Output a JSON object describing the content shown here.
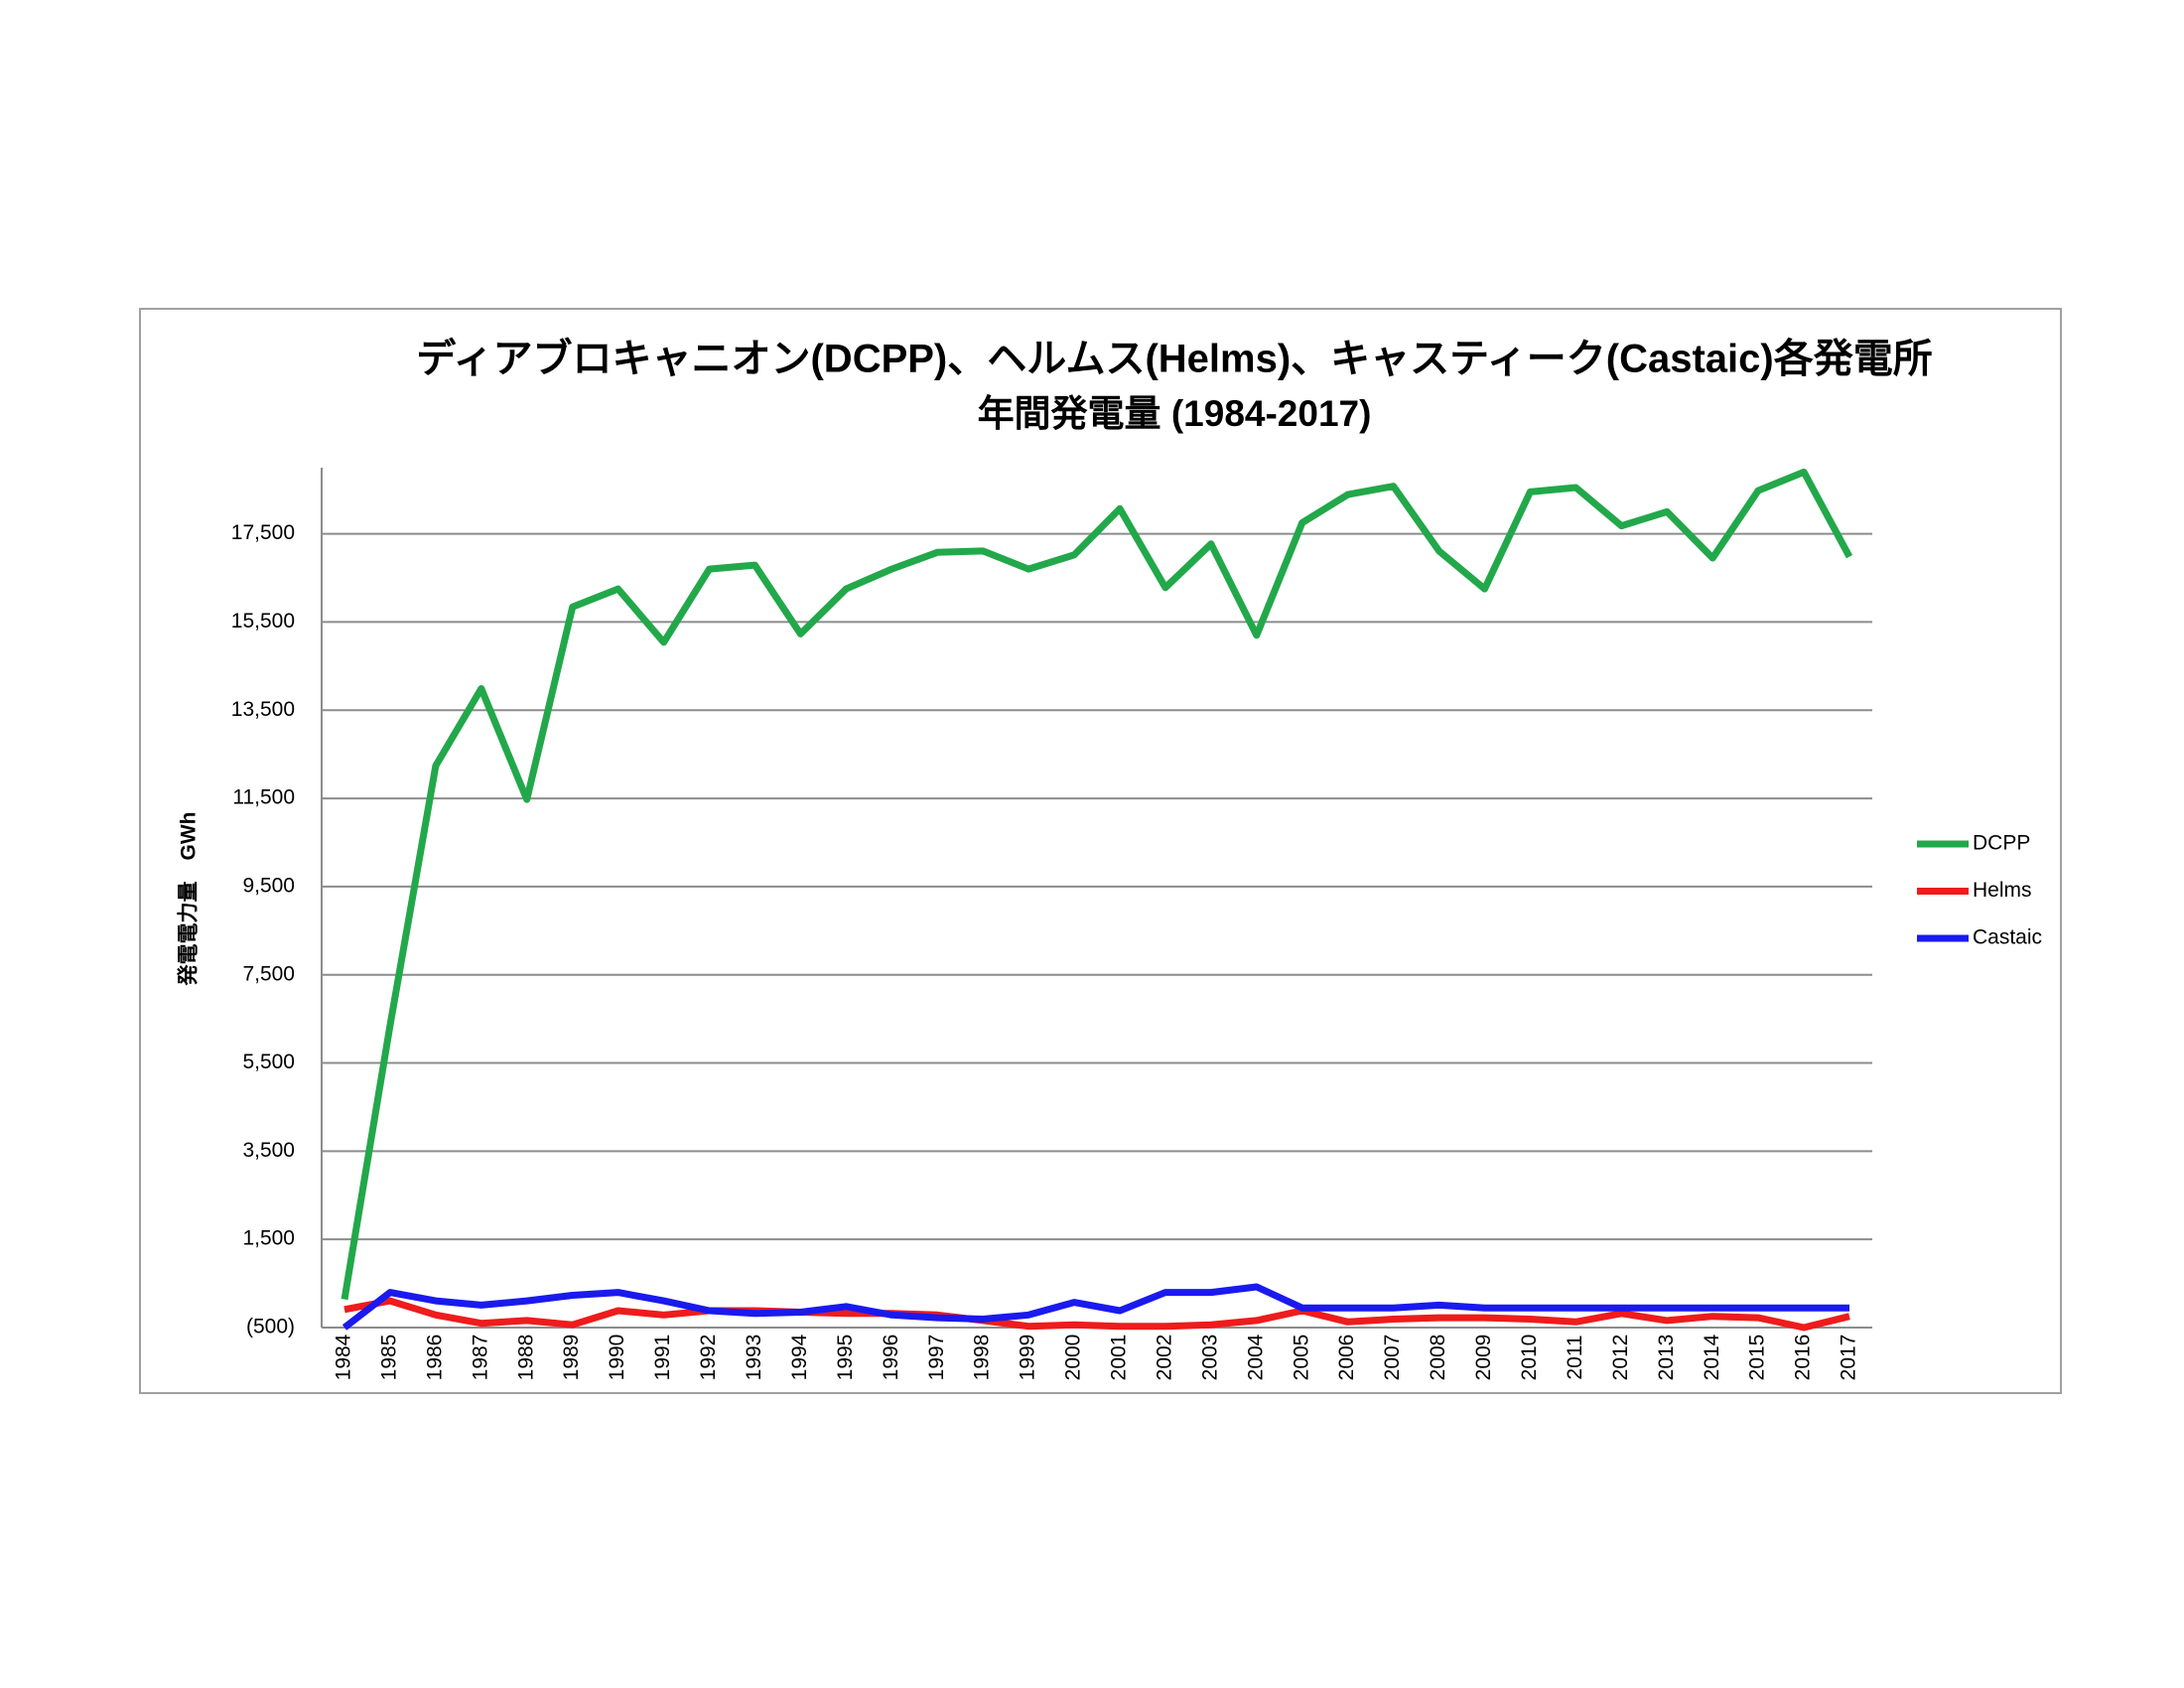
{
  "chart_data": {
    "type": "line",
    "title": "ディアブロキャニオン(DCPP)、ヘルムス(Helms)、キャスティーク(Castaic)各発電所",
    "subtitle": "年間発電量 (1984-2017)",
    "y_label": "発電電力量　GWh",
    "categories": [
      "1984",
      "1985",
      "1986",
      "1987",
      "1988",
      "1989",
      "1990",
      "1991",
      "1992",
      "1993",
      "1994",
      "1995",
      "1996",
      "1997",
      "1998",
      "1999",
      "2000",
      "2001",
      "2002",
      "2003",
      "2004",
      "2005",
      "2006",
      "2007",
      "2008",
      "2009",
      "2010",
      "2011",
      "2012",
      "2013",
      "2014",
      "2015",
      "2016",
      "2017"
    ],
    "series": [
      {
        "name": "DCPP",
        "color": "#22a84a",
        "values": [
          140,
          6350,
          12240,
          13990,
          11475,
          15840,
          16250,
          15040,
          16700,
          16790,
          15230,
          16250,
          16700,
          17080,
          17110,
          16700,
          17020,
          18070,
          16280,
          17270,
          15200,
          17750,
          18390,
          18580,
          17110,
          16250,
          18450,
          18550,
          17680,
          18000,
          16950,
          18480,
          18900,
          16980
        ]
      },
      {
        "name": "Helms",
        "color": "#ee1c1c",
        "values": [
          -90,
          105,
          -213,
          -404,
          -340,
          -436,
          -118,
          -213,
          -118,
          -118,
          -150,
          -180,
          -180,
          -213,
          -340,
          -470,
          -436,
          -470,
          -470,
          -436,
          -340,
          -118,
          -372,
          -309,
          -277,
          -277,
          -309,
          -372,
          -180,
          -340,
          -245,
          -277,
          -500,
          -245
        ]
      },
      {
        "name": "Castaic",
        "color": "#1a1aee",
        "values": [
          -500,
          296,
          105,
          10,
          105,
          232,
          296,
          105,
          -118,
          -180,
          -150,
          -22,
          -213,
          -277,
          -309,
          -213,
          73,
          -118,
          296,
          296,
          424,
          -54,
          -54,
          -54,
          10,
          -54,
          -54,
          -54,
          -54,
          -54,
          -54,
          -54,
          -54,
          -54
        ]
      }
    ],
    "ylim": [
      -500,
      19000
    ],
    "yticks": [
      {
        "value": -500,
        "label": "(500)"
      },
      {
        "value": 1500,
        "label": "1,500"
      },
      {
        "value": 3500,
        "label": "3,500"
      },
      {
        "value": 5500,
        "label": "5,500"
      },
      {
        "value": 7500,
        "label": "7,500"
      },
      {
        "value": 9500,
        "label": "9,500"
      },
      {
        "value": 11500,
        "label": "11,500"
      },
      {
        "value": 13500,
        "label": "13,500"
      },
      {
        "value": 15500,
        "label": "15,500"
      },
      {
        "value": 17500,
        "label": "17,500"
      }
    ],
    "grid": true,
    "legend": "right"
  }
}
